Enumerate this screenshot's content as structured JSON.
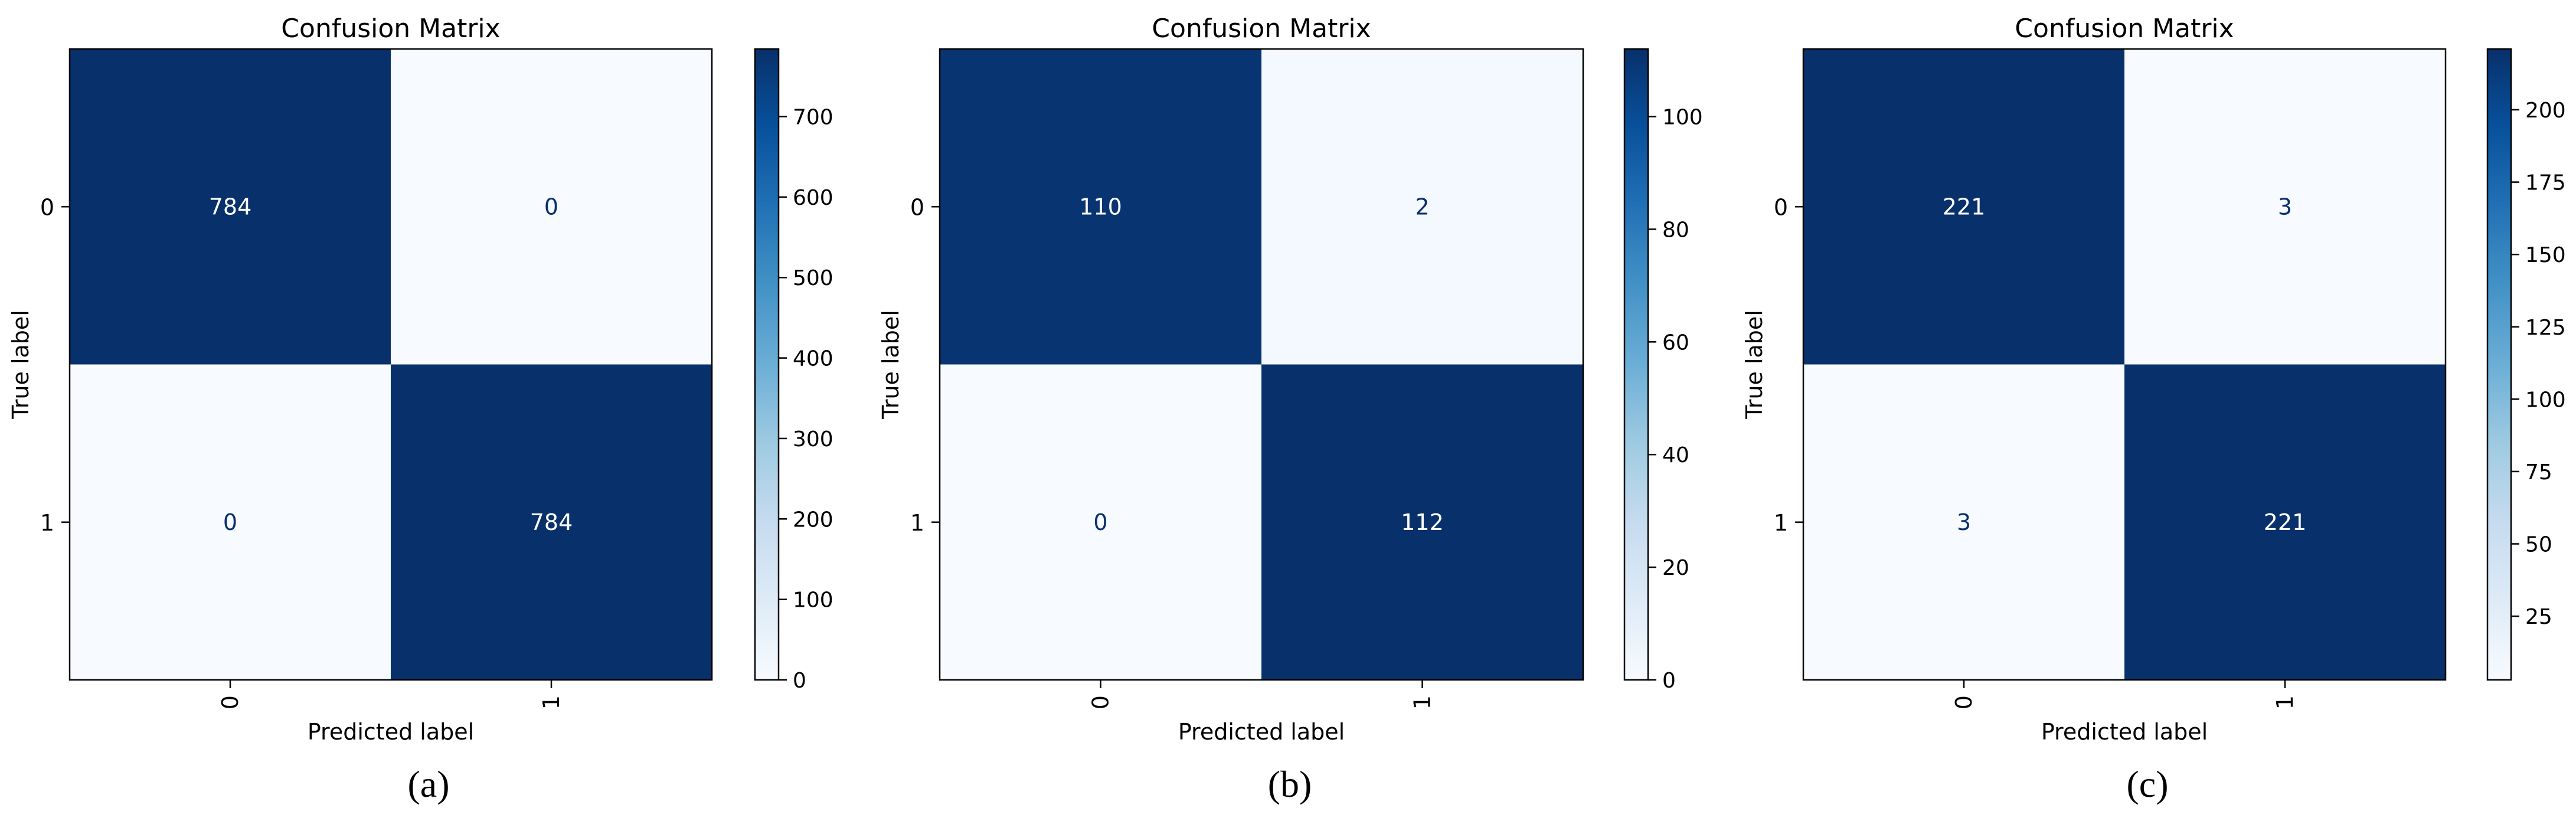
{
  "chart_data": [
    {
      "type": "heatmap",
      "panel_label": "(a)",
      "title": "Confusion Matrix",
      "xlabel": "Predicted label",
      "ylabel": "True label",
      "x_categories": [
        "0",
        "1"
      ],
      "y_categories": [
        "0",
        "1"
      ],
      "matrix": [
        [
          784,
          0
        ],
        [
          0,
          784
        ]
      ],
      "colorbar": {
        "range": [
          0,
          784
        ],
        "ticks": [
          0,
          100,
          200,
          300,
          400,
          500,
          600,
          700
        ]
      },
      "colormap": "Blues"
    },
    {
      "type": "heatmap",
      "panel_label": "(b)",
      "title": "Confusion Matrix",
      "xlabel": "Predicted label",
      "ylabel": "True label",
      "x_categories": [
        "0",
        "1"
      ],
      "y_categories": [
        "0",
        "1"
      ],
      "matrix": [
        [
          110,
          2
        ],
        [
          0,
          112
        ]
      ],
      "colorbar": {
        "range": [
          0,
          112
        ],
        "ticks": [
          0,
          20,
          40,
          60,
          80,
          100
        ]
      },
      "colormap": "Blues"
    },
    {
      "type": "heatmap",
      "panel_label": "(c)",
      "title": "Confusion Matrix",
      "xlabel": "Predicted label",
      "ylabel": "True label",
      "x_categories": [
        "0",
        "1"
      ],
      "y_categories": [
        "0",
        "1"
      ],
      "matrix": [
        [
          221,
          3
        ],
        [
          3,
          221
        ]
      ],
      "colorbar": {
        "range": [
          3,
          221
        ],
        "ticks": [
          25,
          50,
          75,
          100,
          125,
          150,
          175,
          200
        ]
      },
      "colormap": "Blues"
    }
  ],
  "colors": {
    "cmap_low": "#f7fbff",
    "cmap_mid": "#6baed6",
    "cmap_high": "#08306b",
    "text_on_dark": "#ffffff",
    "text_on_light": "#08306b",
    "axis": "#000000"
  }
}
